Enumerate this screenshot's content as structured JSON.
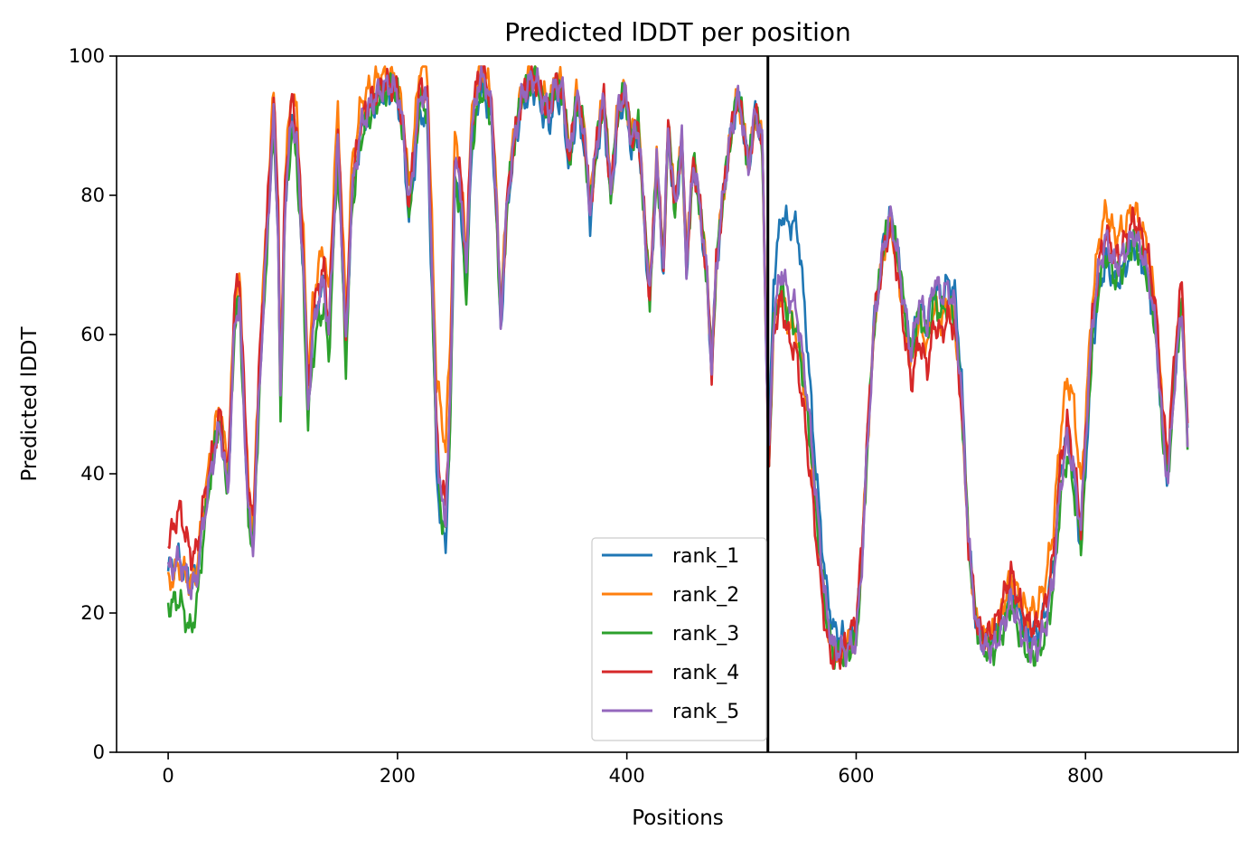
{
  "chart_data": {
    "type": "line",
    "title": "Predicted lDDT per position",
    "xlabel": "Positions",
    "ylabel": "Predicted lDDT",
    "xlim": [
      -45,
      933
    ],
    "ylim": [
      0,
      100
    ],
    "xticks": [
      0,
      200,
      400,
      600,
      800
    ],
    "yticks": [
      0,
      20,
      40,
      60,
      80,
      100
    ],
    "xtick_labels": [
      "0",
      "200",
      "400",
      "600",
      "800"
    ],
    "ytick_labels": [
      "0",
      "20",
      "40",
      "60",
      "80",
      "100"
    ],
    "grid": false,
    "legend_position": "lower-center",
    "separator_x": 523,
    "n_positions": 890,
    "colors": {
      "rank_1": "#1f77b4",
      "rank_2": "#ff7f0e",
      "rank_3": "#2ca02c",
      "rank_4": "#d62728",
      "rank_5": "#9467bd",
      "separator": "#000000"
    },
    "base_profile": [
      [
        0,
        26
      ],
      [
        10,
        28
      ],
      [
        20,
        24
      ],
      [
        25,
        26
      ],
      [
        30,
        33
      ],
      [
        38,
        42
      ],
      [
        45,
        48
      ],
      [
        52,
        38
      ],
      [
        58,
        62
      ],
      [
        62,
        66
      ],
      [
        66,
        50
      ],
      [
        70,
        35
      ],
      [
        74,
        30
      ],
      [
        80,
        55
      ],
      [
        88,
        80
      ],
      [
        92,
        92
      ],
      [
        96,
        75
      ],
      [
        98,
        50
      ],
      [
        102,
        80
      ],
      [
        108,
        92
      ],
      [
        112,
        88
      ],
      [
        118,
        70
      ],
      [
        122,
        50
      ],
      [
        126,
        60
      ],
      [
        130,
        65
      ],
      [
        136,
        68
      ],
      [
        140,
        60
      ],
      [
        144,
        75
      ],
      [
        148,
        88
      ],
      [
        152,
        72
      ],
      [
        155,
        58
      ],
      [
        160,
        80
      ],
      [
        168,
        90
      ],
      [
        176,
        93
      ],
      [
        184,
        95
      ],
      [
        192,
        96
      ],
      [
        200,
        95
      ],
      [
        206,
        88
      ],
      [
        210,
        78
      ],
      [
        214,
        85
      ],
      [
        220,
        95
      ],
      [
        226,
        93
      ],
      [
        230,
        70
      ],
      [
        234,
        45
      ],
      [
        238,
        36
      ],
      [
        242,
        34
      ],
      [
        246,
        50
      ],
      [
        250,
        85
      ],
      [
        256,
        80
      ],
      [
        260,
        68
      ],
      [
        264,
        88
      ],
      [
        270,
        96
      ],
      [
        276,
        97
      ],
      [
        282,
        92
      ],
      [
        286,
        80
      ],
      [
        290,
        62
      ],
      [
        296,
        80
      ],
      [
        302,
        88
      ],
      [
        308,
        94
      ],
      [
        314,
        96
      ],
      [
        320,
        97
      ],
      [
        326,
        94
      ],
      [
        332,
        92
      ],
      [
        338,
        96
      ],
      [
        344,
        95
      ],
      [
        350,
        85
      ],
      [
        356,
        94
      ],
      [
        362,
        90
      ],
      [
        368,
        78
      ],
      [
        374,
        88
      ],
      [
        380,
        94
      ],
      [
        386,
        80
      ],
      [
        392,
        92
      ],
      [
        398,
        95
      ],
      [
        404,
        88
      ],
      [
        410,
        90
      ],
      [
        416,
        75
      ],
      [
        420,
        65
      ],
      [
        426,
        85
      ],
      [
        432,
        70
      ],
      [
        436,
        90
      ],
      [
        442,
        78
      ],
      [
        448,
        88
      ],
      [
        452,
        70
      ],
      [
        458,
        85
      ],
      [
        464,
        78
      ],
      [
        470,
        68
      ],
      [
        474,
        55
      ],
      [
        478,
        70
      ],
      [
        484,
        80
      ],
      [
        490,
        88
      ],
      [
        496,
        94
      ],
      [
        500,
        92
      ],
      [
        506,
        84
      ],
      [
        512,
        92
      ],
      [
        518,
        88
      ],
      [
        522,
        55
      ],
      [
        524,
        42
      ],
      [
        528,
        62
      ],
      [
        535,
        68
      ],
      [
        540,
        64
      ],
      [
        548,
        62
      ],
      [
        556,
        52
      ],
      [
        562,
        42
      ],
      [
        568,
        30
      ],
      [
        574,
        20
      ],
      [
        580,
        15
      ],
      [
        590,
        15
      ],
      [
        600,
        17
      ],
      [
        605,
        28
      ],
      [
        610,
        45
      ],
      [
        616,
        62
      ],
      [
        624,
        72
      ],
      [
        630,
        76
      ],
      [
        636,
        70
      ],
      [
        642,
        62
      ],
      [
        648,
        55
      ],
      [
        655,
        62
      ],
      [
        662,
        58
      ],
      [
        668,
        64
      ],
      [
        674,
        62
      ],
      [
        680,
        64
      ],
      [
        686,
        62
      ],
      [
        692,
        50
      ],
      [
        698,
        30
      ],
      [
        705,
        18
      ],
      [
        712,
        15
      ],
      [
        720,
        15
      ],
      [
        728,
        18
      ],
      [
        735,
        22
      ],
      [
        742,
        18
      ],
      [
        750,
        15
      ],
      [
        758,
        15
      ],
      [
        765,
        18
      ],
      [
        772,
        25
      ],
      [
        778,
        38
      ],
      [
        784,
        45
      ],
      [
        790,
        40
      ],
      [
        796,
        32
      ],
      [
        800,
        45
      ],
      [
        806,
        62
      ],
      [
        812,
        70
      ],
      [
        818,
        74
      ],
      [
        826,
        70
      ],
      [
        834,
        72
      ],
      [
        842,
        75
      ],
      [
        850,
        72
      ],
      [
        856,
        68
      ],
      [
        862,
        60
      ],
      [
        868,
        45
      ],
      [
        872,
        40
      ],
      [
        878,
        55
      ],
      [
        884,
        65
      ],
      [
        889,
        45
      ]
    ],
    "series": [
      {
        "name": "rank_1",
        "offsets": [
          [
            0,
            0
          ],
          [
            200,
            -1
          ],
          [
            236,
            -4
          ],
          [
            300,
            -1
          ],
          [
            330,
            -2
          ],
          [
            522,
            0
          ],
          [
            528,
            6
          ],
          [
            540,
            12
          ],
          [
            550,
            14
          ],
          [
            556,
            10
          ],
          [
            562,
            5
          ],
          [
            600,
            0
          ],
          [
            690,
            4
          ],
          [
            700,
            0
          ],
          [
            740,
            2
          ],
          [
            780,
            2
          ],
          [
            800,
            -4
          ],
          [
            889,
            0
          ]
        ]
      },
      {
        "name": "rank_2",
        "offsets": [
          [
            0,
            -2
          ],
          [
            40,
            2
          ],
          [
            130,
            4
          ],
          [
            138,
            5
          ],
          [
            200,
            1
          ],
          [
            232,
            6
          ],
          [
            236,
            12
          ],
          [
            244,
            10
          ],
          [
            252,
            2
          ],
          [
            300,
            1
          ],
          [
            522,
            0
          ],
          [
            540,
            -2
          ],
          [
            600,
            0
          ],
          [
            700,
            0
          ],
          [
            780,
            8
          ],
          [
            790,
            10
          ],
          [
            800,
            3
          ],
          [
            820,
            4
          ],
          [
            850,
            3
          ],
          [
            889,
            0
          ]
        ]
      },
      {
        "name": "rank_3",
        "offsets": [
          [
            0,
            -5
          ],
          [
            10,
            -6
          ],
          [
            18,
            -7
          ],
          [
            28,
            -4
          ],
          [
            40,
            0
          ],
          [
            120,
            -3
          ],
          [
            130,
            -4
          ],
          [
            200,
            0
          ],
          [
            260,
            -3
          ],
          [
            300,
            0
          ],
          [
            522,
            0
          ],
          [
            540,
            -1
          ],
          [
            600,
            -1
          ],
          [
            640,
            2
          ],
          [
            700,
            0
          ],
          [
            760,
            -1
          ],
          [
            800,
            -3
          ],
          [
            889,
            0
          ]
        ]
      },
      {
        "name": "rank_4",
        "offsets": [
          [
            0,
            4
          ],
          [
            10,
            7
          ],
          [
            20,
            4
          ],
          [
            40,
            0
          ],
          [
            60,
            3
          ],
          [
            200,
            0
          ],
          [
            240,
            2
          ],
          [
            300,
            0
          ],
          [
            522,
            0
          ],
          [
            540,
            -4
          ],
          [
            560,
            -6
          ],
          [
            600,
            2
          ],
          [
            660,
            -3
          ],
          [
            700,
            0
          ],
          [
            730,
            4
          ],
          [
            760,
            3
          ],
          [
            780,
            3
          ],
          [
            800,
            0
          ],
          [
            880,
            3
          ],
          [
            889,
            2
          ]
        ]
      },
      {
        "name": "rank_5",
        "offsets": [
          [
            0,
            0
          ],
          [
            30,
            -1
          ],
          [
            200,
            0
          ],
          [
            300,
            0
          ],
          [
            522,
            0
          ],
          [
            540,
            2
          ],
          [
            560,
            1
          ],
          [
            600,
            -1
          ],
          [
            670,
            4
          ],
          [
            700,
            0
          ],
          [
            800,
            0
          ],
          [
            889,
            -1
          ]
        ]
      }
    ]
  }
}
